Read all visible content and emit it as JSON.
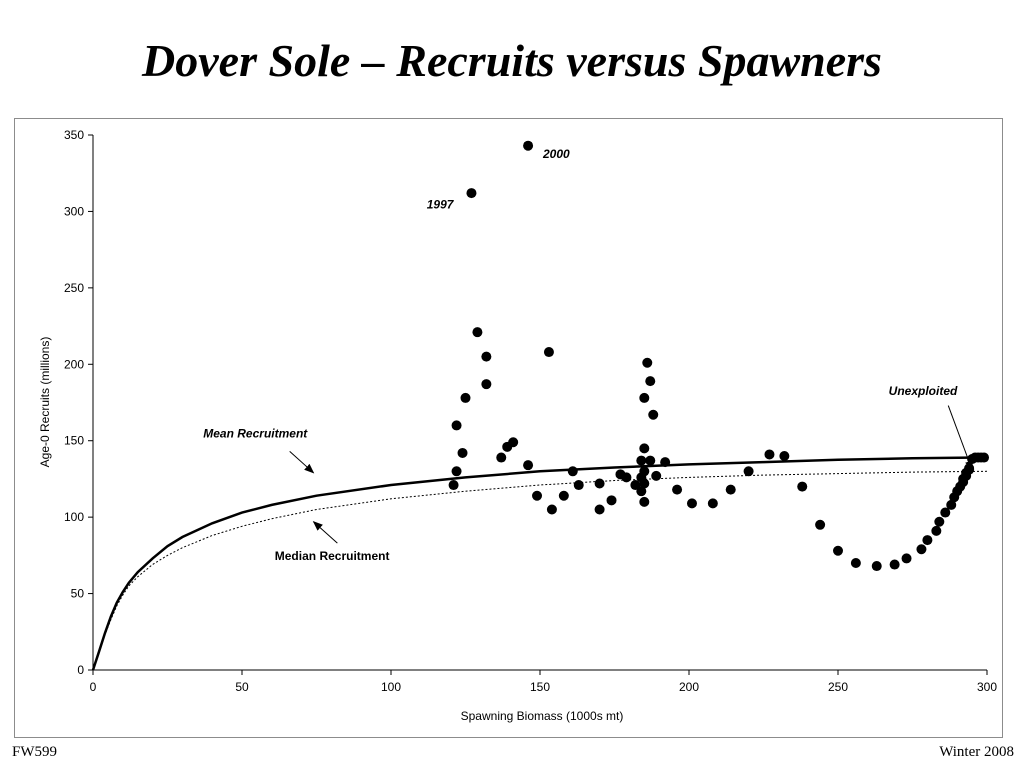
{
  "slide": {
    "title": "Dover Sole – Recruits versus Spawners",
    "footer_left": "FW599",
    "footer_right": "Winter 2008"
  },
  "chart_data": {
    "type": "scatter",
    "xlabel": "Spawning Biomass (1000s mt)",
    "ylabel": "Age-0 Recruits (millions)",
    "xlim": [
      0,
      300
    ],
    "ylim": [
      0,
      350
    ],
    "x_ticks": [
      0,
      50,
      100,
      150,
      200,
      250,
      300
    ],
    "y_ticks": [
      0,
      50,
      100,
      150,
      200,
      250,
      300,
      350
    ],
    "grid": false,
    "legend": "none",
    "series": [
      {
        "kind": "points",
        "points": [
          [
            121,
            121
          ],
          [
            122,
            130
          ],
          [
            122,
            160
          ],
          [
            124,
            142
          ],
          [
            125,
            178
          ],
          [
            127,
            312
          ],
          [
            129,
            221
          ],
          [
            132,
            187
          ],
          [
            132,
            205
          ],
          [
            137,
            139
          ],
          [
            139,
            146
          ],
          [
            141,
            149
          ],
          [
            146,
            134
          ],
          [
            146,
            343
          ],
          [
            149,
            114
          ],
          [
            153,
            208
          ],
          [
            154,
            105
          ],
          [
            158,
            114
          ],
          [
            161,
            130
          ],
          [
            163,
            121
          ],
          [
            170,
            122
          ],
          [
            170,
            105
          ],
          [
            174,
            111
          ],
          [
            177,
            128
          ],
          [
            179,
            126
          ],
          [
            182,
            121
          ],
          [
            184,
            137
          ],
          [
            184,
            117
          ],
          [
            184,
            126
          ],
          [
            185,
            130
          ],
          [
            185,
            110
          ],
          [
            185,
            122
          ],
          [
            185,
            178
          ],
          [
            185,
            145
          ],
          [
            186,
            201
          ],
          [
            187,
            189
          ],
          [
            187,
            137
          ],
          [
            188,
            167
          ],
          [
            189,
            127
          ],
          [
            192,
            136
          ],
          [
            196,
            118
          ],
          [
            201,
            109
          ],
          [
            208,
            109
          ],
          [
            214,
            118
          ],
          [
            220,
            130
          ],
          [
            227,
            141
          ],
          [
            232,
            140
          ],
          [
            238,
            120
          ],
          [
            244,
            95
          ],
          [
            250,
            78
          ],
          [
            256,
            70
          ],
          [
            263,
            68
          ],
          [
            269,
            69
          ],
          [
            273,
            73
          ],
          [
            278,
            79
          ],
          [
            280,
            85
          ],
          [
            283,
            91
          ],
          [
            284,
            97
          ],
          [
            286,
            103
          ],
          [
            288,
            108
          ],
          [
            289,
            113
          ],
          [
            290,
            117
          ],
          [
            291,
            120
          ],
          [
            292,
            123
          ],
          [
            292,
            125
          ],
          [
            293,
            127
          ],
          [
            293,
            129
          ],
          [
            294,
            131
          ],
          [
            294,
            132
          ],
          [
            295,
            138
          ],
          [
            296,
            139
          ],
          [
            297,
            139
          ],
          [
            298,
            139
          ],
          [
            299,
            139
          ]
        ]
      },
      {
        "kind": "curve",
        "style": "solid",
        "x": [
          0,
          2,
          4,
          6,
          8,
          10,
          12,
          15,
          20,
          25,
          30,
          40,
          50,
          60,
          75,
          100,
          125,
          150,
          175,
          200,
          225,
          250,
          275,
          298
        ],
        "y": [
          0,
          12,
          24,
          35,
          44,
          51,
          57,
          64,
          73,
          81,
          87,
          96,
          103,
          108,
          114,
          121,
          126,
          130,
          132.5,
          134.5,
          136,
          137.5,
          138.5,
          139
        ]
      },
      {
        "kind": "curve",
        "style": "dotted",
        "x": [
          0,
          2,
          4,
          6,
          8,
          10,
          12,
          15,
          20,
          25,
          30,
          40,
          50,
          60,
          75,
          100,
          125,
          150,
          175,
          200,
          225,
          250,
          275,
          300
        ],
        "y": [
          0,
          12,
          23,
          33,
          42,
          49,
          55,
          61,
          69,
          75,
          80,
          88,
          94,
          99,
          105,
          112,
          117,
          121,
          124,
          126,
          127.5,
          128.5,
          129.5,
          130
        ]
      }
    ],
    "annotations": [
      {
        "text": "2000",
        "x": 151,
        "y": 335,
        "style": "bold-italic"
      },
      {
        "text": "1997",
        "x": 112,
        "y": 302,
        "style": "bold-italic"
      },
      {
        "text": "Unexploited",
        "x": 267,
        "y": 180,
        "style": "bold-italic",
        "arrow_to": [
          295,
          131
        ],
        "arrow_from": [
          287,
          173
        ]
      },
      {
        "text": "Mean Recruitment",
        "x": 37,
        "y": 152,
        "style": "bold-italic",
        "arrow_to": [
          74,
          129
        ],
        "arrow_from": [
          66,
          143
        ]
      },
      {
        "text": "Median Recruitment",
        "x": 61,
        "y": 72,
        "style": "bold",
        "arrow_to": [
          74,
          97
        ],
        "arrow_from": [
          82,
          83
        ]
      }
    ]
  }
}
